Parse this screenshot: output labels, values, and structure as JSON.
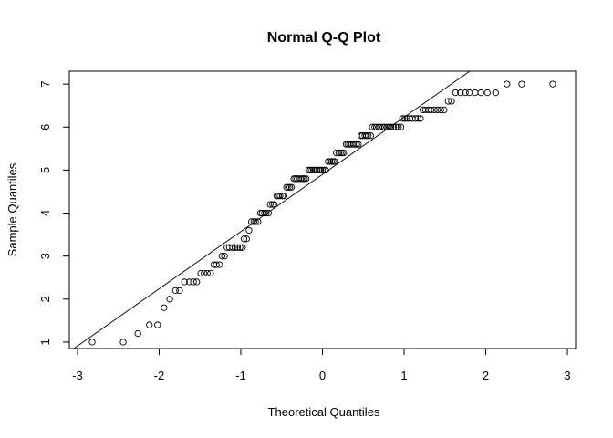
{
  "chart_data": {
    "type": "scatter",
    "title": "Normal Q-Q Plot",
    "xlabel": "Theoretical Quantiles",
    "ylabel": "Sample Quantiles",
    "xlim": [
      -3.1,
      3.1
    ],
    "ylim": [
      0.85,
      7.3
    ],
    "x_ticks": [
      -3,
      -2,
      -1,
      0,
      1,
      2,
      3
    ],
    "y_ticks": [
      1,
      2,
      3,
      4,
      5,
      6,
      7
    ],
    "grid": false,
    "reference_line": {
      "intercept": 4.9,
      "slope": 1.33
    },
    "points": [
      [
        -2.82,
        1.0
      ],
      [
        -2.44,
        1.0
      ],
      [
        -2.26,
        1.2
      ],
      [
        -2.12,
        1.4
      ],
      [
        -2.02,
        1.4
      ],
      [
        -1.94,
        1.8
      ],
      [
        -1.87,
        2.0
      ],
      [
        -1.8,
        2.2
      ],
      [
        -1.75,
        2.2
      ],
      [
        -1.69,
        2.4
      ],
      [
        -1.63,
        2.4
      ],
      [
        -1.58,
        2.4
      ],
      [
        -1.54,
        2.4
      ],
      [
        -1.49,
        2.6
      ],
      [
        -1.45,
        2.6
      ],
      [
        -1.41,
        2.6
      ],
      [
        -1.37,
        2.6
      ],
      [
        -1.33,
        2.8
      ],
      [
        -1.3,
        2.8
      ],
      [
        -1.26,
        2.8
      ],
      [
        -1.23,
        3.0
      ],
      [
        -1.2,
        3.0
      ],
      [
        -1.17,
        3.2
      ],
      [
        -1.14,
        3.2
      ],
      [
        -1.1,
        3.2
      ],
      [
        -1.07,
        3.2
      ],
      [
        -1.04,
        3.2
      ],
      [
        -1.01,
        3.2
      ],
      [
        -0.98,
        3.2
      ],
      [
        -0.96,
        3.4
      ],
      [
        -0.93,
        3.4
      ],
      [
        -0.9,
        3.6
      ],
      [
        -0.87,
        3.8
      ],
      [
        -0.84,
        3.8
      ],
      [
        -0.82,
        3.8
      ],
      [
        -0.79,
        3.8
      ],
      [
        -0.76,
        4.0
      ],
      [
        -0.74,
        4.0
      ],
      [
        -0.71,
        4.0
      ],
      [
        -0.69,
        4.0
      ],
      [
        -0.66,
        4.0
      ],
      [
        -0.64,
        4.2
      ],
      [
        -0.61,
        4.2
      ],
      [
        -0.59,
        4.2
      ],
      [
        -0.56,
        4.4
      ],
      [
        -0.54,
        4.4
      ],
      [
        -0.52,
        4.4
      ],
      [
        -0.49,
        4.4
      ],
      [
        -0.47,
        4.4
      ],
      [
        -0.44,
        4.6
      ],
      [
        -0.42,
        4.6
      ],
      [
        -0.4,
        4.6
      ],
      [
        -0.38,
        4.6
      ],
      [
        -0.35,
        4.8
      ],
      [
        -0.33,
        4.8
      ],
      [
        -0.31,
        4.8
      ],
      [
        -0.29,
        4.8
      ],
      [
        -0.26,
        4.8
      ],
      [
        -0.24,
        4.8
      ],
      [
        -0.22,
        4.8
      ],
      [
        -0.2,
        4.8
      ],
      [
        -0.17,
        5.0
      ],
      [
        -0.15,
        5.0
      ],
      [
        -0.13,
        5.0
      ],
      [
        -0.11,
        5.0
      ],
      [
        -0.09,
        5.0
      ],
      [
        -0.07,
        5.0
      ],
      [
        -0.04,
        5.0
      ],
      [
        -0.02,
        5.0
      ],
      [
        0.0,
        5.0
      ],
      [
        0.02,
        5.0
      ],
      [
        0.04,
        5.0
      ],
      [
        0.07,
        5.2
      ],
      [
        0.09,
        5.2
      ],
      [
        0.11,
        5.2
      ],
      [
        0.13,
        5.2
      ],
      [
        0.15,
        5.2
      ],
      [
        0.17,
        5.4
      ],
      [
        0.2,
        5.4
      ],
      [
        0.22,
        5.4
      ],
      [
        0.24,
        5.4
      ],
      [
        0.26,
        5.4
      ],
      [
        0.29,
        5.6
      ],
      [
        0.31,
        5.6
      ],
      [
        0.33,
        5.6
      ],
      [
        0.35,
        5.6
      ],
      [
        0.38,
        5.6
      ],
      [
        0.4,
        5.6
      ],
      [
        0.42,
        5.6
      ],
      [
        0.44,
        5.6
      ],
      [
        0.47,
        5.8
      ],
      [
        0.49,
        5.8
      ],
      [
        0.52,
        5.8
      ],
      [
        0.54,
        5.8
      ],
      [
        0.56,
        5.8
      ],
      [
        0.59,
        5.8
      ],
      [
        0.61,
        6.0
      ],
      [
        0.64,
        6.0
      ],
      [
        0.66,
        6.0
      ],
      [
        0.69,
        6.0
      ],
      [
        0.71,
        6.0
      ],
      [
        0.74,
        6.0
      ],
      [
        0.76,
        6.0
      ],
      [
        0.79,
        6.0
      ],
      [
        0.82,
        6.0
      ],
      [
        0.84,
        6.0
      ],
      [
        0.87,
        6.0
      ],
      [
        0.9,
        6.0
      ],
      [
        0.93,
        6.0
      ],
      [
        0.96,
        6.0
      ],
      [
        0.98,
        6.2
      ],
      [
        1.01,
        6.2
      ],
      [
        1.04,
        6.2
      ],
      [
        1.07,
        6.2
      ],
      [
        1.1,
        6.2
      ],
      [
        1.14,
        6.2
      ],
      [
        1.17,
        6.2
      ],
      [
        1.2,
        6.2
      ],
      [
        1.23,
        6.4
      ],
      [
        1.26,
        6.4
      ],
      [
        1.3,
        6.4
      ],
      [
        1.33,
        6.4
      ],
      [
        1.37,
        6.4
      ],
      [
        1.41,
        6.4
      ],
      [
        1.45,
        6.4
      ],
      [
        1.49,
        6.4
      ],
      [
        1.54,
        6.6
      ],
      [
        1.58,
        6.6
      ],
      [
        1.63,
        6.8
      ],
      [
        1.69,
        6.8
      ],
      [
        1.75,
        6.8
      ],
      [
        1.8,
        6.8
      ],
      [
        1.87,
        6.8
      ],
      [
        1.94,
        6.8
      ],
      [
        2.02,
        6.8
      ],
      [
        2.12,
        6.8
      ],
      [
        2.26,
        7.0
      ],
      [
        2.44,
        7.0
      ],
      [
        2.82,
        7.0
      ]
    ]
  }
}
